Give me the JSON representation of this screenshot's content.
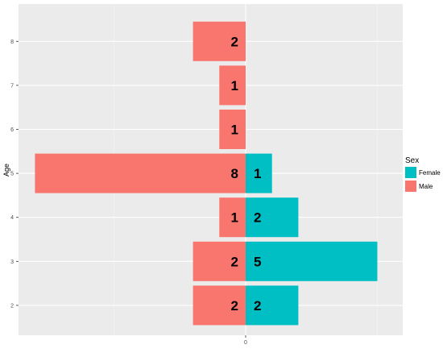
{
  "chart_data": {
    "type": "bar",
    "orientation": "horizontal-diverging",
    "ylabel": "Age",
    "categories": [
      "2",
      "3",
      "4",
      "5",
      "6",
      "7",
      "8"
    ],
    "x_tick_labels": [
      "0"
    ],
    "xlim": [
      -8,
      5
    ],
    "grid": true,
    "legend": {
      "title": "Sex",
      "placement": "right"
    },
    "series": [
      {
        "name": "Female",
        "color": "#00BFC4",
        "values": [
          2,
          5,
          2,
          1,
          0,
          0,
          0
        ]
      },
      {
        "name": "Male",
        "color": "#F8766D",
        "values": [
          2,
          2,
          1,
          8,
          1,
          1,
          2
        ]
      }
    ]
  }
}
